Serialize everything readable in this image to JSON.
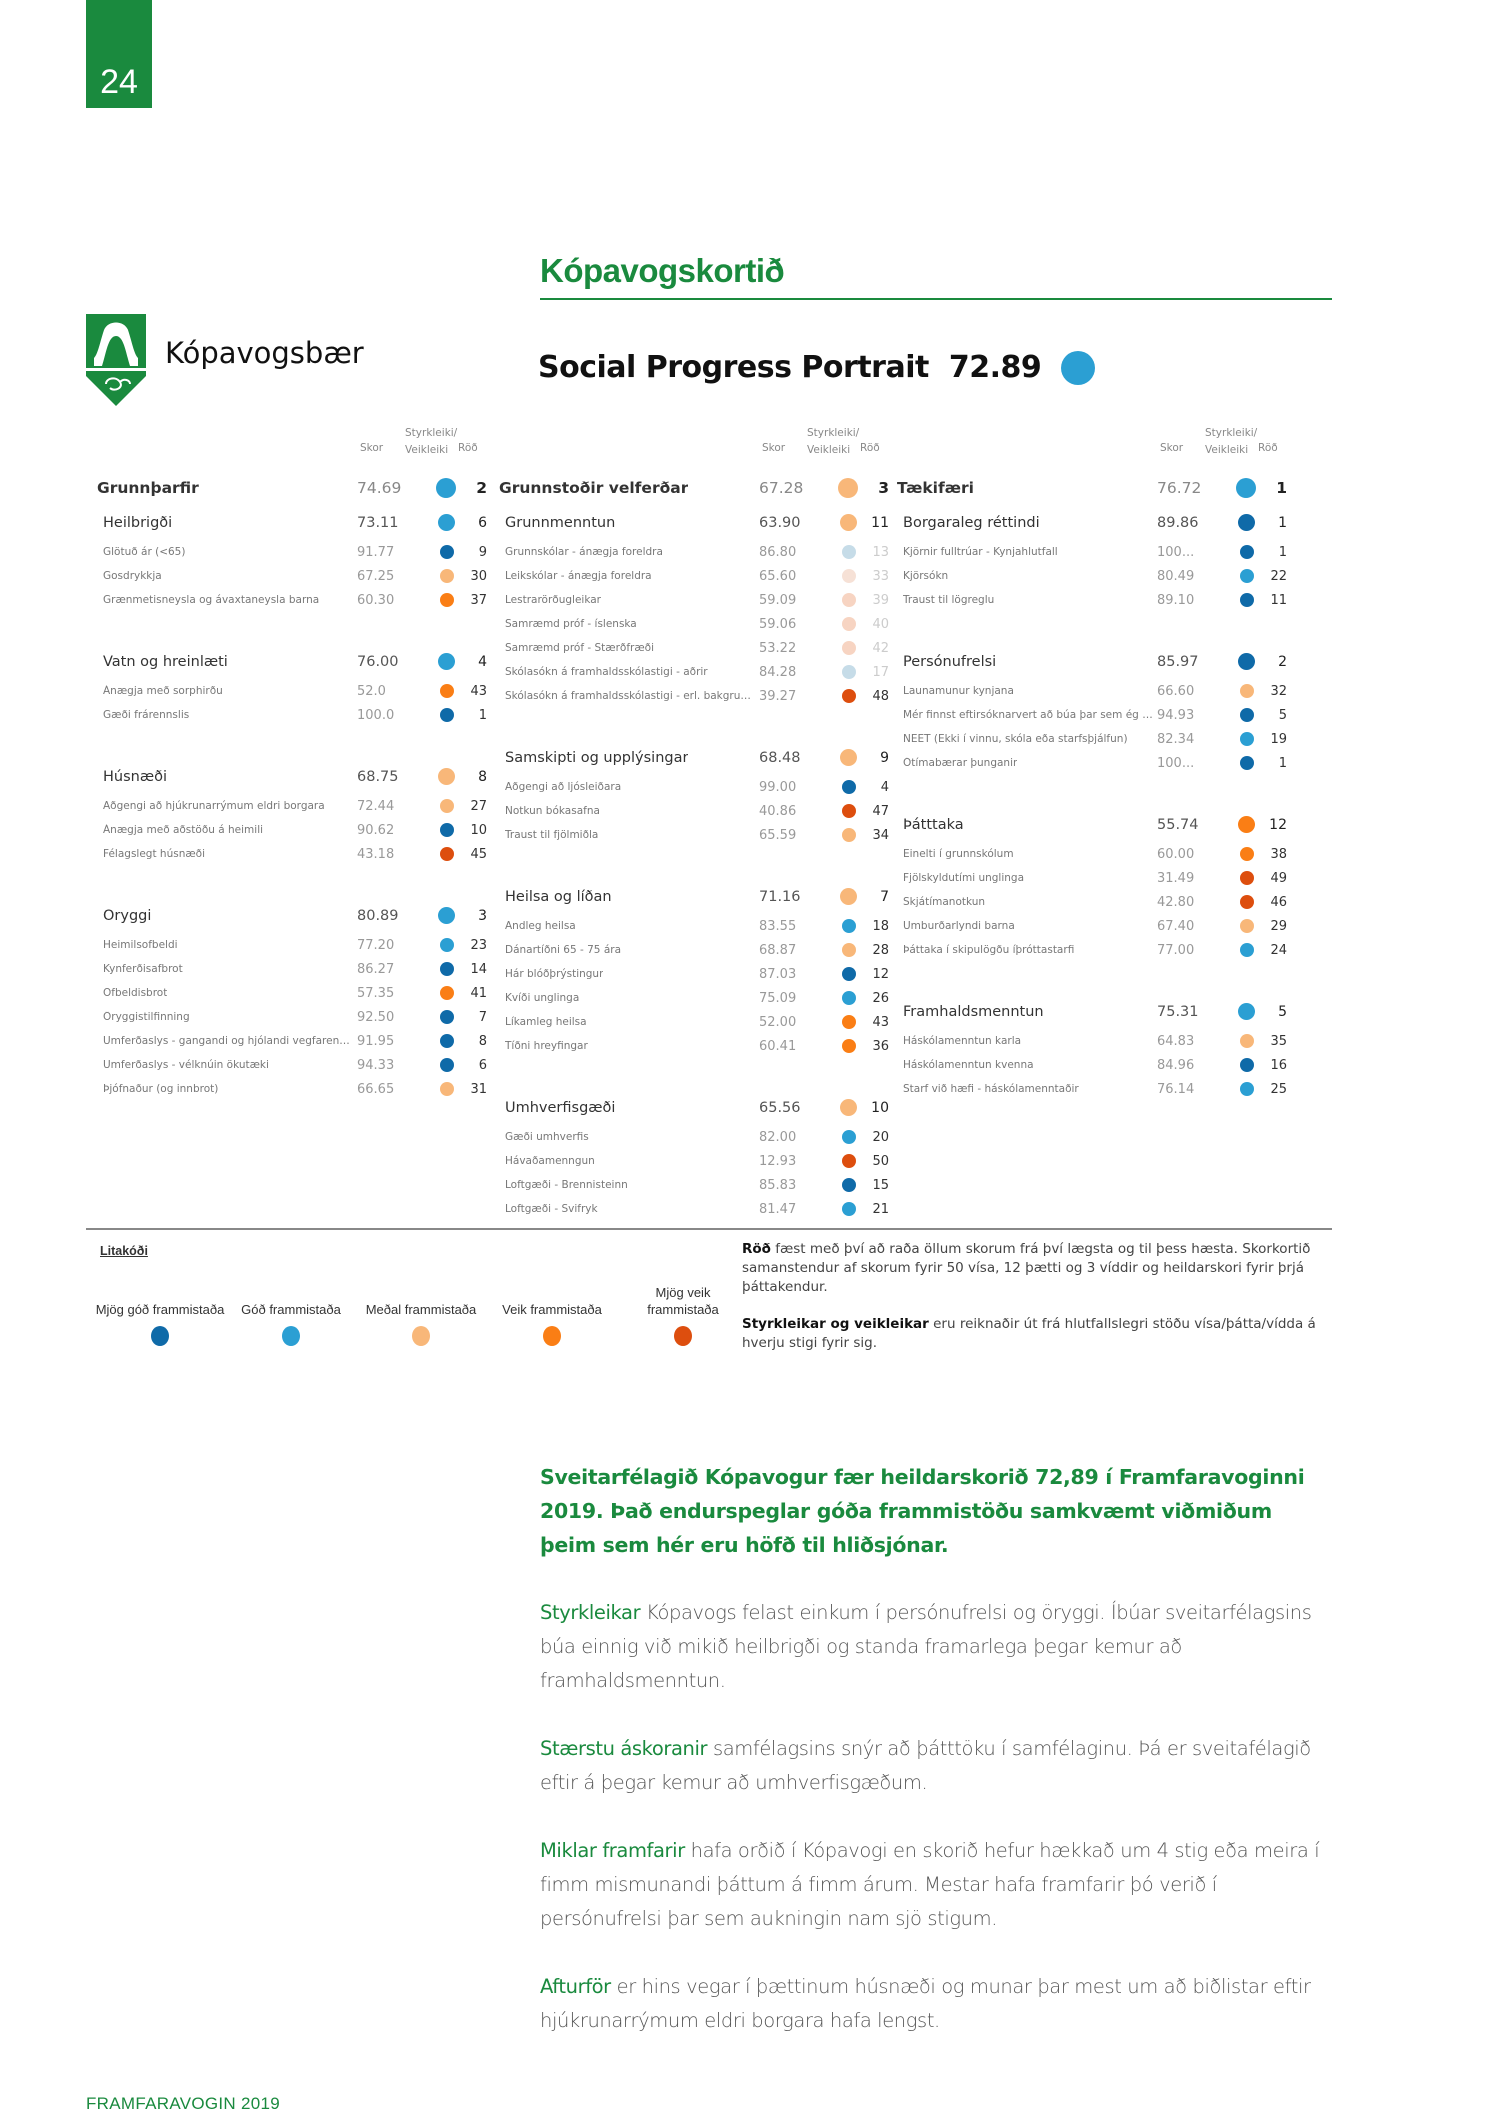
{
  "page_number": "24",
  "title": "Kópavogskortið",
  "logo": {
    "name": "Kópavogsbær"
  },
  "portrait": {
    "label": "Social Progress Portrait",
    "score": "72.89",
    "level": "good"
  },
  "colors": {
    "very_good": "#0f6aa8",
    "good": "#2b9fd3",
    "average": "#f8b779",
    "weak": "#fa7e15",
    "very_weak": "#dd4e0e",
    "faded_good": "#c6dce8",
    "faded_average": "#f6e1d6",
    "faded_weak": "#f7d4c2",
    "brand_green": "#1a8a3e"
  },
  "column_headers": {
    "score": "Skor",
    "strength": "Styrkleiki/",
    "weakness": "Veikleiki",
    "rank": "Röð"
  },
  "columns": [
    {
      "pillar": {
        "label": "Grunnþarfir",
        "score": "74.69",
        "level": "good",
        "rank": "2"
      },
      "components": [
        {
          "label": "Heilbrigði",
          "score": "73.11",
          "level": "good",
          "rank": "6",
          "indicators": [
            {
              "label": "Glötuð ár (<65)",
              "score": "91.77",
              "level": "very_good",
              "rank": "9"
            },
            {
              "label": "Gosdrykkja",
              "score": "67.25",
              "level": "average",
              "rank": "30"
            },
            {
              "label": "Grænmetisneysla og ávaxtaneysla barna",
              "score": "60.30",
              "level": "weak",
              "rank": "37"
            }
          ]
        },
        {
          "label": "Vatn og hreinlæti",
          "score": "76.00",
          "level": "good",
          "rank": "4",
          "indicators": [
            {
              "label": "Ánægja með sorphirðu",
              "score": "52.0",
              "level": "weak",
              "rank": "43"
            },
            {
              "label": "Gæði frárennslis",
              "score": "100.0",
              "level": "very_good",
              "rank": "1"
            }
          ]
        },
        {
          "label": "Húsnæði",
          "score": "68.75",
          "level": "average",
          "rank": "8",
          "indicators": [
            {
              "label": "Aðgengi að hjúkrunarrýmum eldri borgara",
              "score": "72.44",
              "level": "average",
              "rank": "27"
            },
            {
              "label": "Ánægja með aðstöðu á heimili",
              "score": "90.62",
              "level": "very_good",
              "rank": "10"
            },
            {
              "label": "Félagslegt húsnæði",
              "score": "43.18",
              "level": "very_weak",
              "rank": "45"
            }
          ]
        },
        {
          "label": "Öryggi",
          "score": "80.89",
          "level": "good",
          "rank": "3",
          "indicators": [
            {
              "label": "Heimilsofbeldi",
              "score": "77.20",
              "level": "good",
              "rank": "23"
            },
            {
              "label": "Kynferðisafbrot",
              "score": "86.27",
              "level": "very_good",
              "rank": "14"
            },
            {
              "label": "Ofbeldisbrot",
              "score": "57.35",
              "level": "weak",
              "rank": "41"
            },
            {
              "label": "Öryggistilfinning",
              "score": "92.50",
              "level": "very_good",
              "rank": "7"
            },
            {
              "label": "Umferðaslys - gangandi og hjólandi vegfarendur",
              "score": "91.95",
              "level": "very_good",
              "rank": "8"
            },
            {
              "label": "Umferðaslys - vélknúin ökutæki",
              "score": "94.33",
              "level": "very_good",
              "rank": "6"
            },
            {
              "label": "Þjófnaður (og innbrot)",
              "score": "66.65",
              "level": "average",
              "rank": "31"
            }
          ]
        }
      ]
    },
    {
      "pillar": {
        "label": "Grunnstoðir velferðar",
        "score": "67.28",
        "level": "average",
        "rank": "3"
      },
      "components": [
        {
          "label": "Grunnmenntun",
          "score": "63.90",
          "level": "average",
          "rank": "11",
          "indicators": [
            {
              "label": "Grunnskólar - ánægja foreldra",
              "score": "86.80",
              "level": "faded_good",
              "rank": "13",
              "faded": true
            },
            {
              "label": "Leikskólar - ánægja foreldra",
              "score": "65.60",
              "level": "faded_average",
              "rank": "33",
              "faded": true
            },
            {
              "label": "Lestrarörðugleikar",
              "score": "59.09",
              "level": "faded_weak",
              "rank": "39",
              "faded": true
            },
            {
              "label": "Samræmd próf - íslenska",
              "score": "59.06",
              "level": "faded_weak",
              "rank": "40",
              "faded": true
            },
            {
              "label": "Samræmd próf - Stærðfræði",
              "score": "53.22",
              "level": "faded_weak",
              "rank": "42",
              "faded": true
            },
            {
              "label": "Skólasókn á framhaldsskólastigi - aðrir",
              "score": "84.28",
              "level": "faded_good",
              "rank": "17",
              "faded": true
            },
            {
              "label": "Skólasókn á framhaldsskólastigi - erl. bakgrunn..",
              "score": "39.27",
              "level": "very_weak",
              "rank": "48"
            }
          ]
        },
        {
          "label": "Samskipti og upplýsingar",
          "score": "68.48",
          "level": "average",
          "rank": "9",
          "indicators": [
            {
              "label": "Aðgengi að ljósleiðara",
              "score": "99.00",
              "level": "very_good",
              "rank": "4"
            },
            {
              "label": "Notkun bókasafna",
              "score": "40.86",
              "level": "very_weak",
              "rank": "47"
            },
            {
              "label": "Traust til fjölmiðla",
              "score": "65.59",
              "level": "average",
              "rank": "34"
            }
          ]
        },
        {
          "label": "Heilsa og líðan",
          "score": "71.16",
          "level": "average",
          "rank": "7",
          "indicators": [
            {
              "label": "Andleg heilsa",
              "score": "83.55",
              "level": "good",
              "rank": "18"
            },
            {
              "label": "Dánartíðni 65 - 75 ára",
              "score": "68.87",
              "level": "average",
              "rank": "28"
            },
            {
              "label": "Hár blóðþrýstingur",
              "score": "87.03",
              "level": "very_good",
              "rank": "12"
            },
            {
              "label": "Kvíði unglinga",
              "score": "75.09",
              "level": "good",
              "rank": "26"
            },
            {
              "label": "Líkamleg heilsa",
              "score": "52.00",
              "level": "weak",
              "rank": "43"
            },
            {
              "label": "Tíðni hreyfingar",
              "score": "60.41",
              "level": "weak",
              "rank": "36"
            }
          ]
        },
        {
          "label": "Umhverfisgæði",
          "score": "65.56",
          "level": "average",
          "rank": "10",
          "indicators": [
            {
              "label": "Gæði umhverfis",
              "score": "82.00",
              "level": "good",
              "rank": "20"
            },
            {
              "label": "Hávaðamenngun",
              "score": "12.93",
              "level": "very_weak",
              "rank": "50"
            },
            {
              "label": "Loftgæði - Brennisteinn",
              "score": "85.83",
              "level": "very_good",
              "rank": "15"
            },
            {
              "label": "Loftgæði - Svifryk",
              "score": "81.47",
              "level": "good",
              "rank": "21"
            }
          ]
        }
      ]
    },
    {
      "pillar": {
        "label": "Tækifæri",
        "score": "76.72",
        "level": "good",
        "rank": "1"
      },
      "components": [
        {
          "label": "Borgaraleg réttindi",
          "score": "89.86",
          "level": "very_good",
          "rank": "1",
          "indicators": [
            {
              "label": "Kjörnir fulltrúar - Kynjahlutfall",
              "score": "100...",
              "level": "very_good",
              "rank": "1"
            },
            {
              "label": "Kjörsókn",
              "score": "80.49",
              "level": "good",
              "rank": "22"
            },
            {
              "label": "Traust til lögreglu",
              "score": "89.10",
              "level": "very_good",
              "rank": "11"
            }
          ]
        },
        {
          "label": "Persónufrelsi",
          "score": "85.97",
          "level": "very_good",
          "rank": "2",
          "indicators": [
            {
              "label": "Launamunur kynjana",
              "score": "66.60",
              "level": "average",
              "rank": "32"
            },
            {
              "label": "Mér finnst eftirsóknarvert að búa þar sem ég bý",
              "score": "94.93",
              "level": "very_good",
              "rank": "5"
            },
            {
              "label": "NEET (Ekki í vinnu, skóla eða starfsþjálfun)",
              "score": "82.34",
              "level": "good",
              "rank": "19"
            },
            {
              "label": "Ótímabærar þunganir",
              "score": "100...",
              "level": "very_good",
              "rank": "1"
            }
          ]
        },
        {
          "label": "Þátttaka",
          "score": "55.74",
          "level": "weak",
          "rank": "12",
          "indicators": [
            {
              "label": "Einelti í grunnskólum",
              "score": "60.00",
              "level": "weak",
              "rank": "38"
            },
            {
              "label": "Fjölskyldutími unglinga",
              "score": "31.49",
              "level": "very_weak",
              "rank": "49"
            },
            {
              "label": "Skjátímanotkun",
              "score": "42.80",
              "level": "very_weak",
              "rank": "46"
            },
            {
              "label": "Umburðarlyndi barna",
              "score": "67.40",
              "level": "average",
              "rank": "29"
            },
            {
              "label": "Þáttaka í skipulögðu íþróttastarfi",
              "score": "77.00",
              "level": "good",
              "rank": "24"
            }
          ]
        },
        {
          "label": "Framhaldsmenntun",
          "score": "75.31",
          "level": "good",
          "rank": "5",
          "indicators": [
            {
              "label": "Háskólamenntun karla",
              "score": "64.83",
              "level": "average",
              "rank": "35"
            },
            {
              "label": "Háskólamenntun kvenna",
              "score": "84.96",
              "level": "very_good",
              "rank": "16"
            },
            {
              "label": "Starf við hæfi - háskólamenntaðir",
              "score": "76.14",
              "level": "good",
              "rank": "25"
            }
          ]
        }
      ]
    }
  ],
  "legend": {
    "title": "Litakóði",
    "items": [
      {
        "label": "Mjög góð frammistaða",
        "level": "very_good"
      },
      {
        "label": "Góð frammistaða",
        "level": "good"
      },
      {
        "label": "Meðal frammistaða",
        "level": "average"
      },
      {
        "label": "Veik frammistaða",
        "level": "weak"
      },
      {
        "label": "Mjög veik frammistaða",
        "level": "very_weak"
      }
    ]
  },
  "notes": [
    {
      "bold": "Röð",
      "text": " fæst með því að raða öllum skorum frá því lægsta og til þess hæsta. Skorkortið samanstendur af skorum fyrir 50 vísa, 12 þætti og 3 víddir og heildarskori fyrir þrjá þáttakendur."
    },
    {
      "bold": "Styrkleikar og veikleikar",
      "text": " eru reiknaðir út frá hlutfallslegri stöðu vísa/þátta/vídda á hverju stigi fyrir sig."
    }
  ],
  "main": {
    "lead": "Sveitarfélagið Kópavogur fær heildarskorið 72,89 í Framfaravoginni 2019. Það endurspeglar góða frammistöðu samkvæmt viðmiðum þeim sem hér eru höfð til hliðsjónar.",
    "paragraphs": [
      {
        "bold": "Styrkleikar",
        "text": " Kópavogs felast einkum í persónufrelsi og öryggi. Íbúar sveitarfélagsins búa einnig við mikið heilbrigði og standa framarlega þegar kemur að framhaldsmenntun."
      },
      {
        "bold": "Stærstu áskoranir",
        "text": " samfélagsins snýr að þátttöku í samfélaginu. Þá er sveitafélagið eftir á þegar kemur að umhverfisgæðum."
      },
      {
        "bold": "Miklar framfarir",
        "text": " hafa orðið í Kópavogi en skorið hefur hækkað um 4 stig eða meira í fimm mismunandi þáttum á fimm árum. Mestar hafa framfarir þó verið í persónufrelsi þar sem aukningin nam sjö stigum."
      },
      {
        "bold": "Afturför",
        "text": " er hins vegar í þættinum húsnæði og munar þar mest um að biðlistar eftir hjúkrunarrýmum eldri borgara hafa lengst."
      }
    ]
  },
  "footer": "FRAMFARAVOGIN 2019"
}
